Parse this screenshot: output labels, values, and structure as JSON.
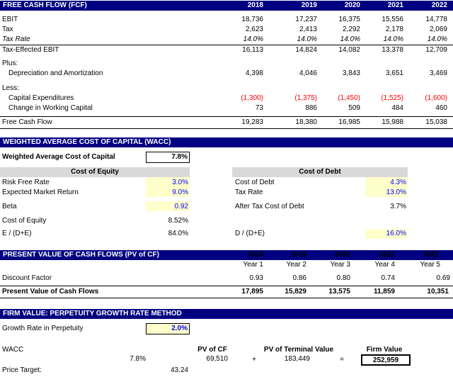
{
  "fcf": {
    "title": "FREE CASH FLOW (FCF)",
    "years": [
      "2018",
      "2019",
      "2020",
      "2021",
      "2022"
    ],
    "ebit_label": "EBIT",
    "ebit": [
      "18,736",
      "17,237",
      "16,375",
      "15,556",
      "14,778"
    ],
    "tax_label": "Tax",
    "tax": [
      "2,623",
      "2,413",
      "2,292",
      "2,178",
      "2,069"
    ],
    "taxrate_label": "Tax Rate",
    "taxrate": [
      "14.0%",
      "14.0%",
      "14.0%",
      "14.0%",
      "14.0%"
    ],
    "tebit_label": "Tax-Effected EBIT",
    "tebit": [
      "16,113",
      "14,824",
      "14,082",
      "13,378",
      "12,709"
    ],
    "plus_label": "Plus:",
    "da_label": "Depreciation and Amortization",
    "da": [
      "4,398",
      "4,046",
      "3,843",
      "3,651",
      "3,469"
    ],
    "less_label": "Less:",
    "capex_label": "Capital Expenditures",
    "capex": [
      "(1,300)",
      "(1,375)",
      "(1,450)",
      "(1,525)",
      "(1,600)"
    ],
    "wc_label": "Change in Working Capital",
    "wc": [
      "73",
      "886",
      "509",
      "484",
      "460"
    ],
    "fcf_label": "Free Cash Flow",
    "fcf": [
      "19,283",
      "18,380",
      "16,985",
      "15,988",
      "15,038"
    ]
  },
  "wacc": {
    "title": "WEIGHTED AVERAGE COST OF CAPITAL (WACC)",
    "wacc_label": "Weighted Average Cost of Capital",
    "wacc_value": "7.8%",
    "equity_header": "Cost of Equity",
    "rfr_label": "Risk Free Rate",
    "rfr": "3.0%",
    "emr_label": "Expected Market Return",
    "emr": "9.0%",
    "beta_label": "Beta",
    "beta": "0.92",
    "coe_label": "Cost of Equity",
    "coe": "8.52%",
    "ede_label": "E / (D+E)",
    "ede": "84.0%",
    "debt_header": "Cost of Debt",
    "cod_label": "Cost of Debt",
    "cod": "4.3%",
    "tr_label": "Tax Rate",
    "tr": "13.0%",
    "atcod_label": "After Tax Cost of Debt",
    "atcod": "3.7%",
    "dde_label": "D / (D+E)",
    "dde": "16.0%"
  },
  "pv": {
    "title": "PRESENT VALUE OF CASH FLOWS (PV of CF)",
    "years": [
      "2018",
      "2019",
      "2020",
      "2021",
      "2022"
    ],
    "year_nums": [
      "Year 1",
      "Year 2",
      "Year 3",
      "Year 4",
      "Year 5"
    ],
    "df_label": "Discount Factor",
    "df": [
      "0.93",
      "0.86",
      "0.80",
      "0.74",
      "0.69"
    ],
    "pvcf_label": "Present Value of Cash Flows",
    "pvcf": [
      "17,895",
      "15,829",
      "13,575",
      "11,859",
      "10,351"
    ]
  },
  "fv": {
    "title": "FIRM VALUE: PERPETUITY GROWTH RATE METHOD",
    "growth_label": "Growth Rate in Perpetuity",
    "growth": "2.0%",
    "wacc_label": "WACC",
    "wacc_value": "7.8%",
    "pvcf_header": "PV of CF",
    "pvcf_value": "69,510",
    "plus_sign": "+",
    "pvtv_header": "PV of Terminal Value",
    "pvtv_value": "183,449",
    "eq_sign": "=",
    "firm_header": "Firm Value",
    "firm_value": "252,959",
    "price_label": "Price Target:",
    "price_value": "43.24"
  }
}
